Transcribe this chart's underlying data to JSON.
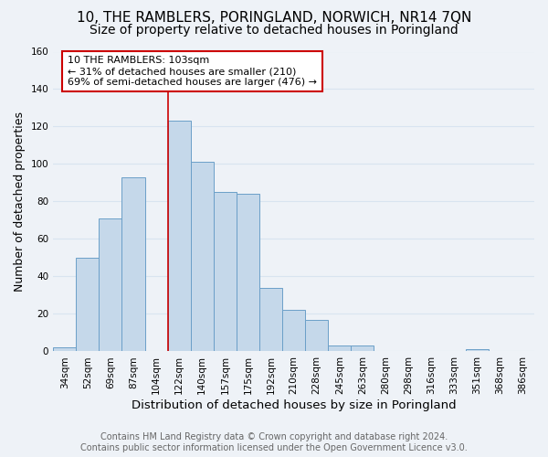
{
  "title": "10, THE RAMBLERS, PORINGLAND, NORWICH, NR14 7QN",
  "subtitle": "Size of property relative to detached houses in Poringland",
  "xlabel": "Distribution of detached houses by size in Poringland",
  "ylabel": "Number of detached properties",
  "categories": [
    "34sqm",
    "52sqm",
    "69sqm",
    "87sqm",
    "104sqm",
    "122sqm",
    "140sqm",
    "157sqm",
    "175sqm",
    "192sqm",
    "210sqm",
    "228sqm",
    "245sqm",
    "263sqm",
    "280sqm",
    "298sqm",
    "316sqm",
    "333sqm",
    "351sqm",
    "368sqm",
    "386sqm"
  ],
  "values": [
    2,
    50,
    71,
    93,
    0,
    123,
    101,
    85,
    84,
    34,
    22,
    17,
    3,
    3,
    0,
    0,
    0,
    0,
    1,
    0,
    0
  ],
  "bar_color": "#c5d8ea",
  "bar_edge_color": "#6b9fc8",
  "vline_color": "#cc0000",
  "vline_x": 4.5,
  "annotation_text": "10 THE RAMBLERS: 103sqm\n← 31% of detached houses are smaller (210)\n69% of semi-detached houses are larger (476) →",
  "annotation_box_color": "#ffffff",
  "annotation_box_edge_color": "#cc0000",
  "ylim": [
    0,
    160
  ],
  "yticks": [
    0,
    20,
    40,
    60,
    80,
    100,
    120,
    140,
    160
  ],
  "footer_line1": "Contains HM Land Registry data © Crown copyright and database right 2024.",
  "footer_line2": "Contains public sector information licensed under the Open Government Licence v3.0.",
  "title_fontsize": 11,
  "subtitle_fontsize": 10,
  "xlabel_fontsize": 9.5,
  "ylabel_fontsize": 9,
  "tick_fontsize": 7.5,
  "annotation_fontsize": 8,
  "footer_fontsize": 7,
  "background_color": "#eef2f7",
  "grid_color": "#d8e4f0"
}
